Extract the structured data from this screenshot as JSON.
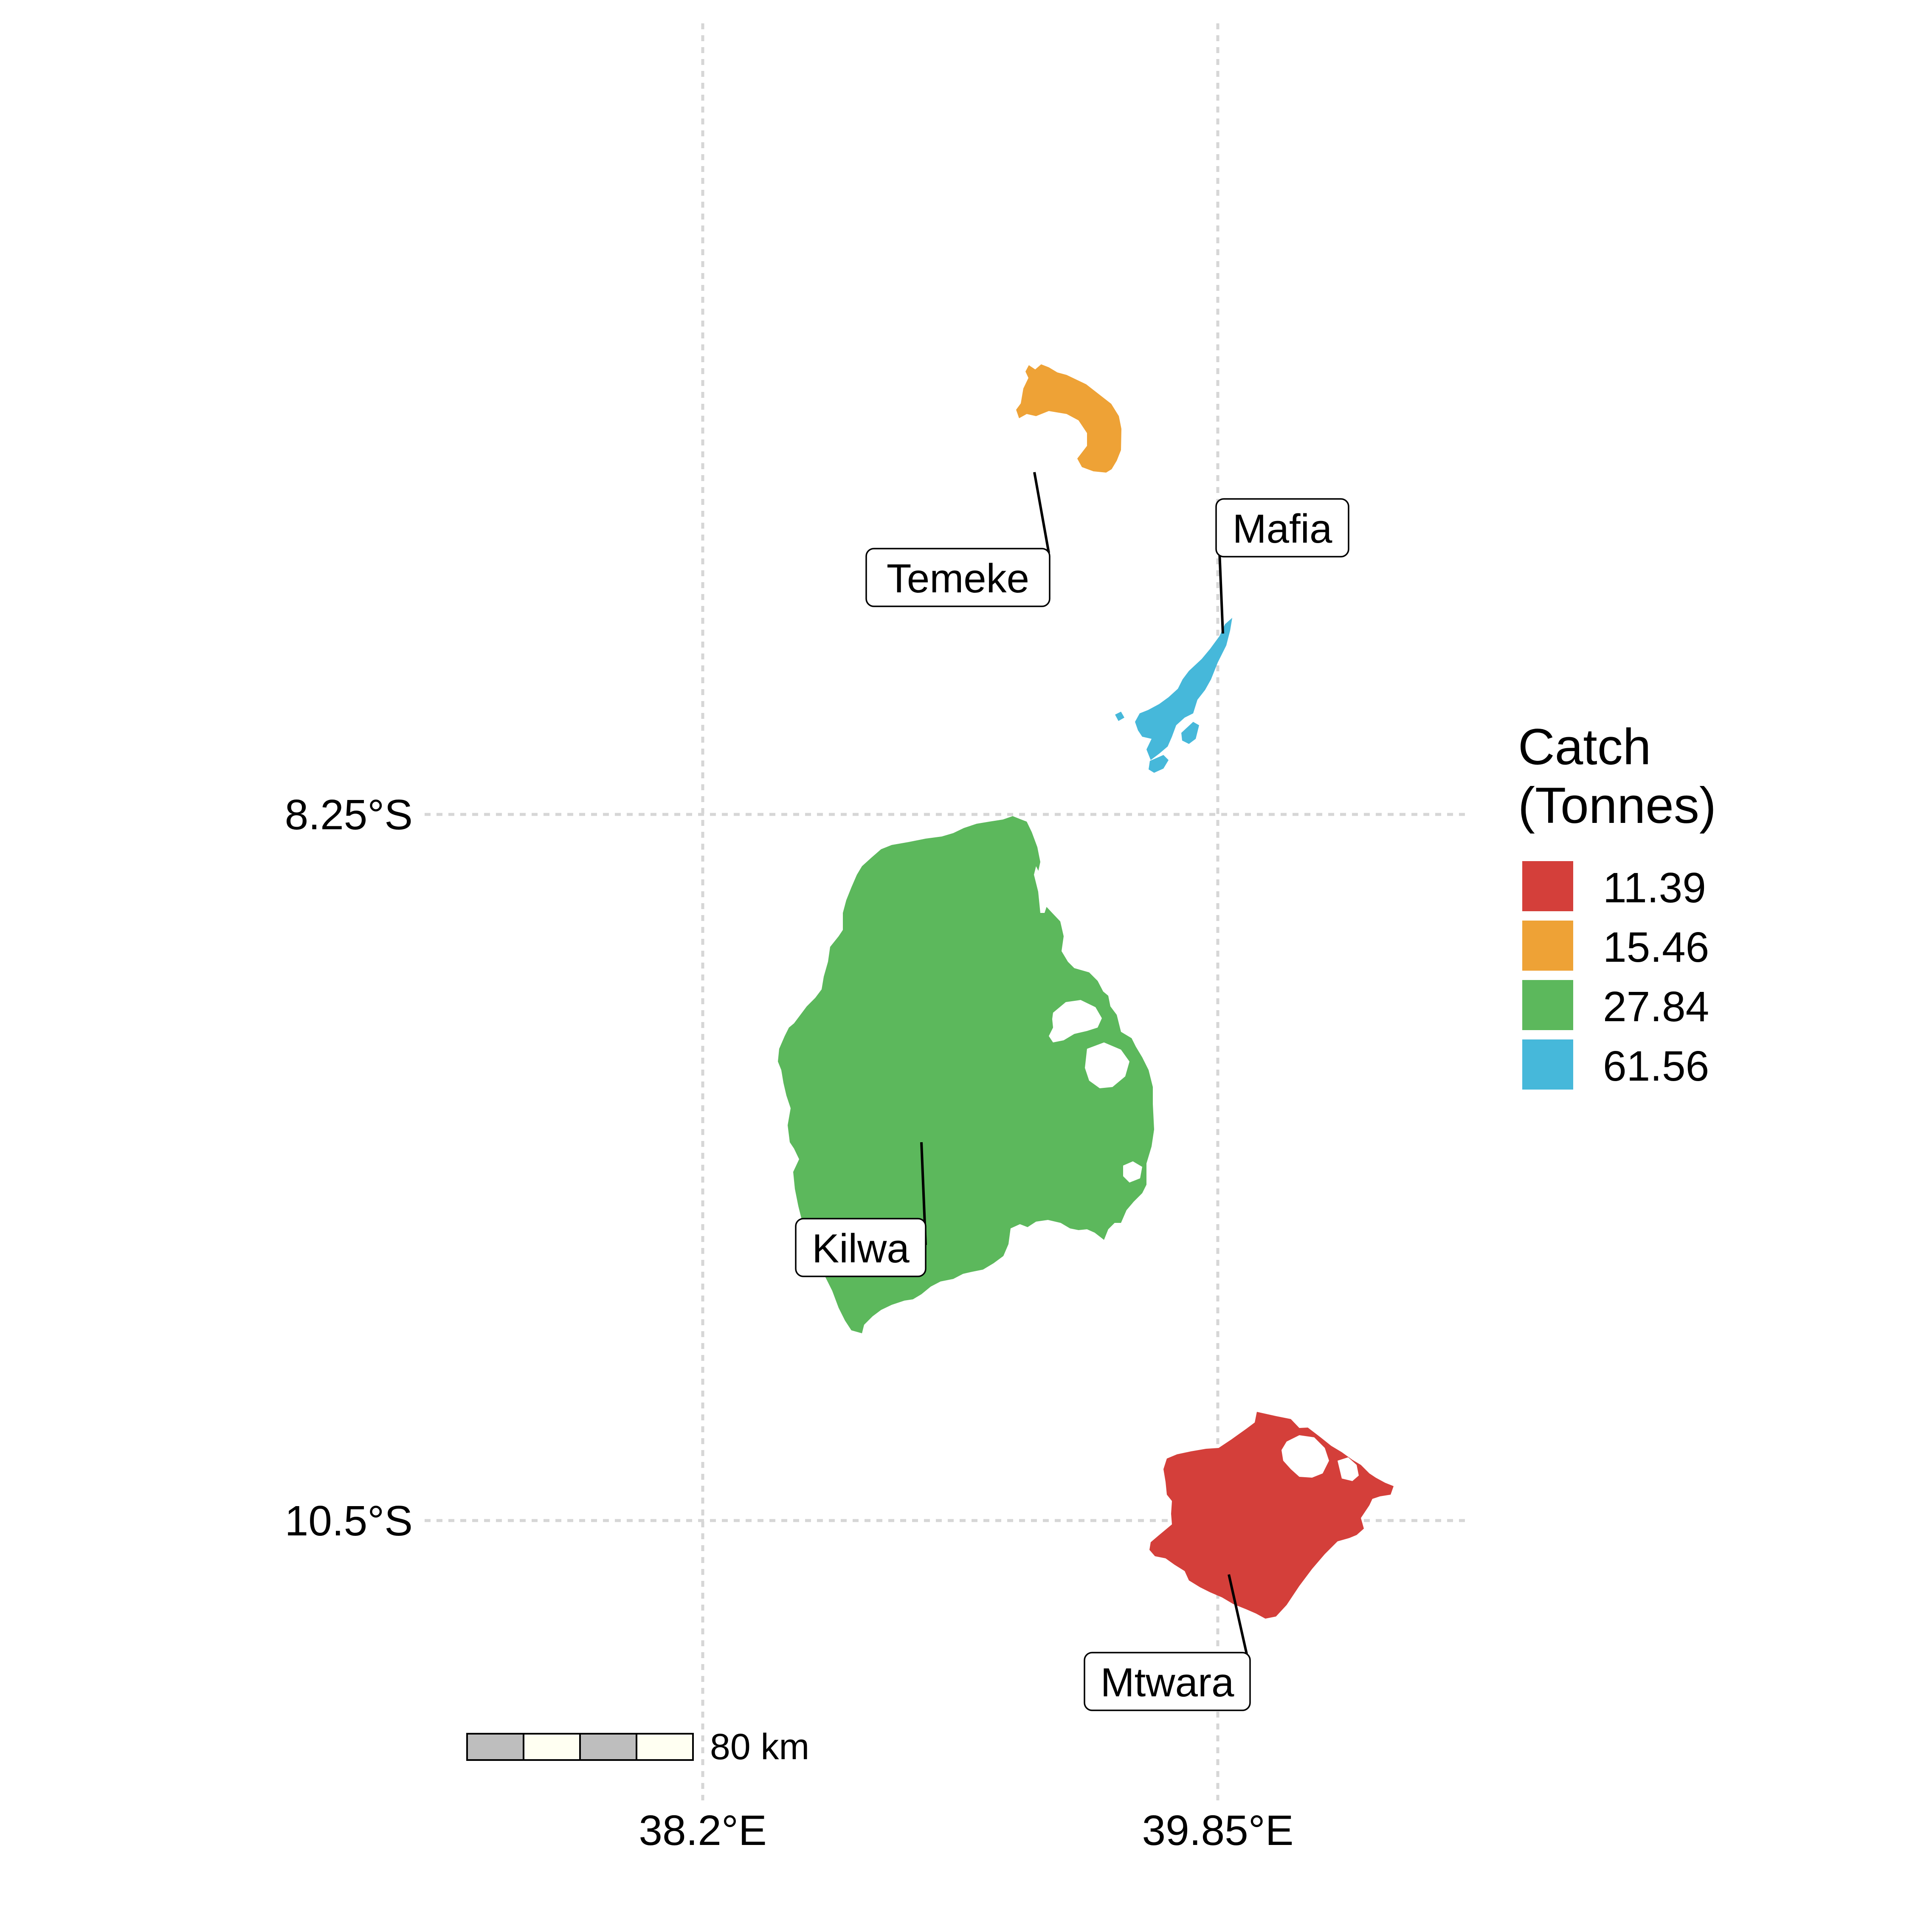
{
  "map": {
    "axes": {
      "x_ticks": [
        {
          "label": "38.2°E",
          "lon": 38.2
        },
        {
          "label": "39.85°E",
          "lon": 39.85
        }
      ],
      "y_ticks": [
        {
          "label": "8.25°S",
          "lat": -8.25
        },
        {
          "label": "10.5°S",
          "lat": -10.5
        }
      ],
      "grid": true
    },
    "regions": [
      {
        "name": "Temeke",
        "catch_tonnes": 15.46,
        "color": "#EEA236"
      },
      {
        "name": "Mafia",
        "catch_tonnes": 61.56,
        "color": "#46B8DA"
      },
      {
        "name": "Kilwa",
        "catch_tonnes": 27.84,
        "color": "#5CB85C"
      },
      {
        "name": "Mtwara",
        "catch_tonnes": 11.39,
        "color": "#D43F3A"
      }
    ],
    "legend": {
      "title_line1": "Catch",
      "title_line2": "(Tonnes)",
      "placement": "right",
      "entries": [
        {
          "label": "11.39",
          "color": "#D43F3A"
        },
        {
          "label": "15.46",
          "color": "#EEA236"
        },
        {
          "label": "27.84",
          "color": "#5CB85C"
        },
        {
          "label": "61.56",
          "color": "#46B8DA"
        }
      ]
    },
    "scale_bar": {
      "label": "80 km",
      "segment_colors": [
        "#bebebe",
        "#fffff2",
        "#bebebe",
        "#fffff2"
      ]
    }
  }
}
